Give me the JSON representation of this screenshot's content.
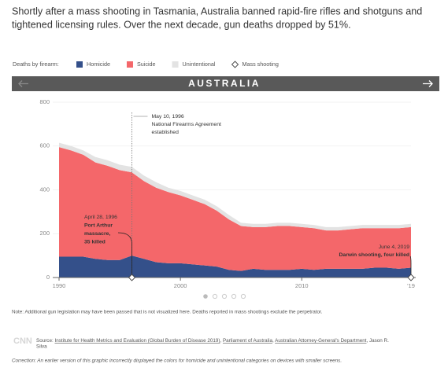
{
  "intro": [
    "Shortly after a mass shooting in Tasmania, Australia banned rapid-fire rifles and shotguns and",
    "tightened licensing rules. Over the next decade, gun deaths dropped by 51%."
  ],
  "chart_data": {
    "type": "stacked_area",
    "title": "AUSTRALIA",
    "legend_title": "Deaths by firearm:",
    "x": [
      1990,
      1991,
      1992,
      1993,
      1994,
      1995,
      1996,
      1997,
      1998,
      1999,
      2000,
      2001,
      2002,
      2003,
      2004,
      2005,
      2006,
      2007,
      2008,
      2009,
      2010,
      2011,
      2012,
      2013,
      2014,
      2015,
      2016,
      2017,
      2018,
      2019
    ],
    "series": [
      {
        "name": "Homicide",
        "color": "#34508a",
        "values": [
          95,
          95,
          95,
          85,
          80,
          80,
          100,
          85,
          70,
          65,
          65,
          60,
          55,
          50,
          35,
          30,
          40,
          35,
          35,
          35,
          40,
          35,
          40,
          40,
          40,
          40,
          45,
          45,
          40,
          45
        ]
      },
      {
        "name": "Suicide",
        "color": "#f4676a",
        "values": [
          500,
          485,
          465,
          440,
          430,
          410,
          380,
          355,
          340,
          325,
          310,
          295,
          280,
          255,
          230,
          205,
          190,
          195,
          200,
          200,
          190,
          190,
          175,
          175,
          180,
          185,
          180,
          180,
          185,
          185
        ]
      },
      {
        "name": "Unintentional",
        "color": "#e3e3e3",
        "values": [
          20,
          20,
          20,
          25,
          25,
          25,
          25,
          25,
          25,
          20,
          20,
          20,
          20,
          20,
          20,
          15,
          15,
          15,
          15,
          15,
          15,
          15,
          15,
          15,
          15,
          15,
          15,
          15,
          15,
          15
        ]
      }
    ],
    "mass_shooting_label": "Mass shooting",
    "mass_shootings": [
      1996,
      2019
    ],
    "xlim": [
      1990,
      2019
    ],
    "xticks": [
      1990,
      2000,
      2010,
      {
        "value": 2019,
        "label": "'19"
      }
    ],
    "ylim": [
      0,
      800
    ],
    "yticks": [
      0,
      200,
      400,
      600,
      800
    ],
    "grid": true,
    "annotations": {
      "agreement": [
        "May 10, 1996",
        "National Firearms Agreement",
        "established"
      ],
      "port_arthur": [
        "April 28, 1996",
        "Port Arthur",
        "massacre,",
        "35 killed"
      ],
      "darwin": [
        "June 4, 2019",
        "Darwin shooting, four killed"
      ]
    }
  },
  "note": "Note: Additional gun legislation may have been passed that is not visualized here. Deaths reported in mass shootings exclude the perpetrator.",
  "logo": "CNN",
  "source": {
    "label": "Source:",
    "links": [
      "Institute for Health Metrics and Evaluation (Global Burden of Disease 2019)",
      "Parliament of Australia",
      "Australian Attorney-General's Department"
    ],
    "separator": ", ",
    "author_lines": [
      "Jason R.",
      "Silva"
    ]
  },
  "correction": "Correction: An earlier version of this graphic incorrectly displayed the colors for homicide and unintentional categories on devices with smaller screens."
}
